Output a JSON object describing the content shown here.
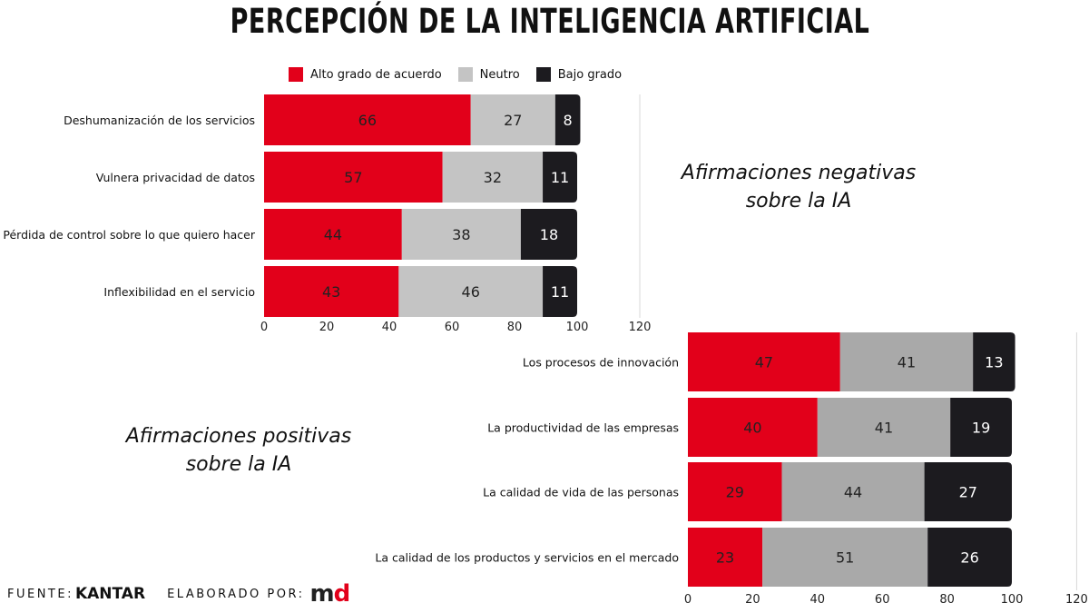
{
  "title": "PERCEPCIÓN DE LA INTELIGENCIA ARTIFICIAL",
  "legend": [
    {
      "label": "Alto grado de acuerdo",
      "color": "#e2001a"
    },
    {
      "label": "Neutro",
      "color": "#c4c4c4"
    },
    {
      "label": "Bajo grado",
      "color": "#1c1b1f"
    }
  ],
  "captions": {
    "negative": [
      "Afirmaciones negativas",
      "sobre la IA"
    ],
    "positive": [
      "Afirmaciones positivas",
      "sobre la IA"
    ]
  },
  "footer": {
    "source_label": "FUENTE:",
    "source_brand": "KANTAR",
    "made_by_label": "ELABORADO POR:",
    "made_by_brand_m": "m",
    "made_by_brand_d": "d"
  },
  "chart_data": [
    {
      "type": "bar",
      "orientation": "horizontal",
      "stacked": true,
      "categories": [
        "Deshumanización de los servicios",
        "Vulnera privacidad de datos",
        "Pérdida de control sobre lo que quiero hacer",
        "Inflexibilidad en el servicio"
      ],
      "series": [
        {
          "name": "Alto grado de acuerdo",
          "color": "#e2001a",
          "values": [
            66,
            57,
            44,
            43
          ]
        },
        {
          "name": "Neutro",
          "color": "#c4c4c4",
          "values": [
            27,
            32,
            38,
            46
          ]
        },
        {
          "name": "Bajo grado",
          "color": "#1c1b1f",
          "values": [
            8,
            11,
            18,
            11
          ]
        }
      ],
      "xlim": [
        0,
        120
      ],
      "xticks": [
        0,
        20,
        40,
        60,
        80,
        100,
        120
      ]
    },
    {
      "type": "bar",
      "orientation": "horizontal",
      "stacked": true,
      "categories": [
        "Los procesos de innovación",
        "La productividad de las empresas",
        "La calidad de vida de las personas",
        "La calidad de los productos y servicios en el mercado"
      ],
      "series": [
        {
          "name": "Alto grado de acuerdo",
          "color": "#e2001a",
          "values": [
            47,
            40,
            29,
            23
          ]
        },
        {
          "name": "Neutro",
          "color": "#a9a9a9",
          "values": [
            41,
            41,
            44,
            51
          ]
        },
        {
          "name": "Bajo grado",
          "color": "#1c1b1f",
          "values": [
            13,
            19,
            27,
            26
          ]
        }
      ],
      "xlim": [
        0,
        120
      ],
      "xticks": [
        0,
        20,
        40,
        60,
        80,
        100,
        120
      ]
    }
  ]
}
